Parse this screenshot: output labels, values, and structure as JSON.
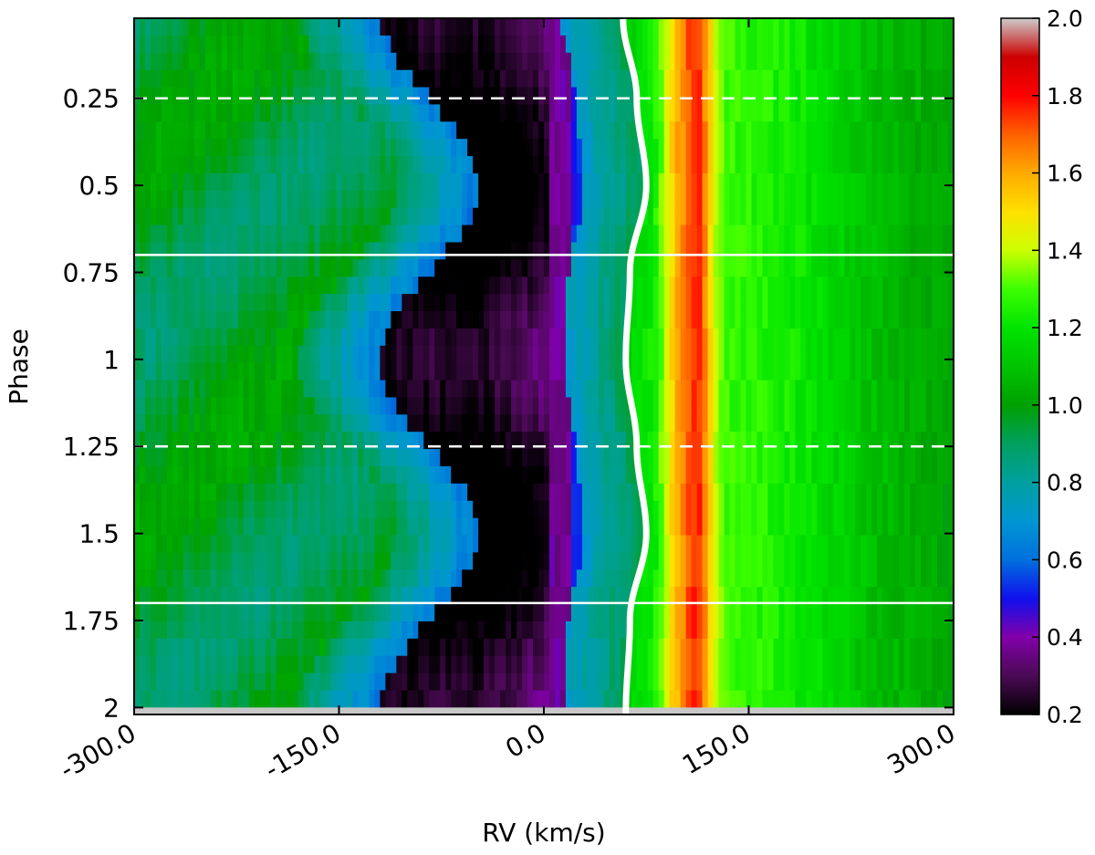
{
  "chart_data": {
    "type": "heatmap",
    "title": "",
    "xlabel": "RV (km/s)",
    "ylabel": "Phase",
    "xlim": [
      -300,
      300
    ],
    "ylim": [
      2.02,
      0.02
    ],
    "y_inverted": true,
    "x_ticks": [
      -300,
      -150,
      0,
      150,
      300
    ],
    "x_tick_labels": [
      "-300.0",
      "-150.0",
      "0.0",
      "150.0",
      "300.0"
    ],
    "y_ticks": [
      0.25,
      0.5,
      0.75,
      1,
      1.25,
      1.5,
      1.75,
      2
    ],
    "y_tick_labels": [
      "0.25",
      "0.5",
      "0.75",
      "1",
      "1.25",
      "1.5",
      "1.75",
      "2"
    ],
    "colorbar": {
      "min": 0.2,
      "max": 2.0,
      "ticks": [
        0.2,
        0.4,
        0.6,
        0.8,
        1.0,
        1.2,
        1.4,
        1.6,
        1.8,
        2.0
      ],
      "tick_labels": [
        "0.2",
        "0.4",
        "0.6",
        "0.8",
        "1.0",
        "1.2",
        "1.4",
        "1.6",
        "1.8",
        "2.0"
      ],
      "colormap": [
        {
          "v": 0.2,
          "color": "#000000"
        },
        {
          "v": 0.3,
          "color": "#4b0a55"
        },
        {
          "v": 0.4,
          "color": "#8200aa"
        },
        {
          "v": 0.5,
          "color": "#1010ee"
        },
        {
          "v": 0.6,
          "color": "#0070dd"
        },
        {
          "v": 0.7,
          "color": "#0096d2"
        },
        {
          "v": 0.8,
          "color": "#00a0a0"
        },
        {
          "v": 0.9,
          "color": "#00a060"
        },
        {
          "v": 1.0,
          "color": "#00a000"
        },
        {
          "v": 1.1,
          "color": "#00c400"
        },
        {
          "v": 1.2,
          "color": "#00e400"
        },
        {
          "v": 1.3,
          "color": "#3cff00"
        },
        {
          "v": 1.4,
          "color": "#ccff00"
        },
        {
          "v": 1.5,
          "color": "#ffe000"
        },
        {
          "v": 1.6,
          "color": "#ffaa00"
        },
        {
          "v": 1.7,
          "color": "#ff6000"
        },
        {
          "v": 1.8,
          "color": "#ff0000"
        },
        {
          "v": 1.9,
          "color": "#cc0000"
        },
        {
          "v": 2.0,
          "color": "#cccccc"
        }
      ]
    },
    "profile_model": {
      "continuum": 1.0,
      "absorption_core_rv": [
        -65,
        35
      ],
      "absorption_blue_edge_rv_min": -120,
      "absorption_blue_edge_rv_max": -40,
      "emission_peak_rv": 112,
      "emission_peak_value": 1.8
    },
    "reference_curve": {
      "color": "#ffffff",
      "phase": [
        0.02,
        0.25,
        0.5,
        0.75,
        1.0,
        1.25,
        1.5,
        1.75,
        2.02
      ],
      "rv": [
        58,
        68,
        75,
        63,
        60,
        68,
        75,
        63,
        60
      ]
    },
    "horizontal_lines": [
      {
        "phase": 0.25,
        "style": "dashed",
        "color": "#ffffff"
      },
      {
        "phase": 0.7,
        "style": "solid",
        "color": "#ffffff"
      },
      {
        "phase": 1.25,
        "style": "dashed",
        "color": "#ffffff"
      },
      {
        "phase": 1.7,
        "style": "solid",
        "color": "#ffffff"
      }
    ],
    "no_data_band": {
      "phase": [
        2.0,
        2.02
      ],
      "color": "#c8c8c8"
    },
    "grid": false,
    "legend": "none"
  }
}
